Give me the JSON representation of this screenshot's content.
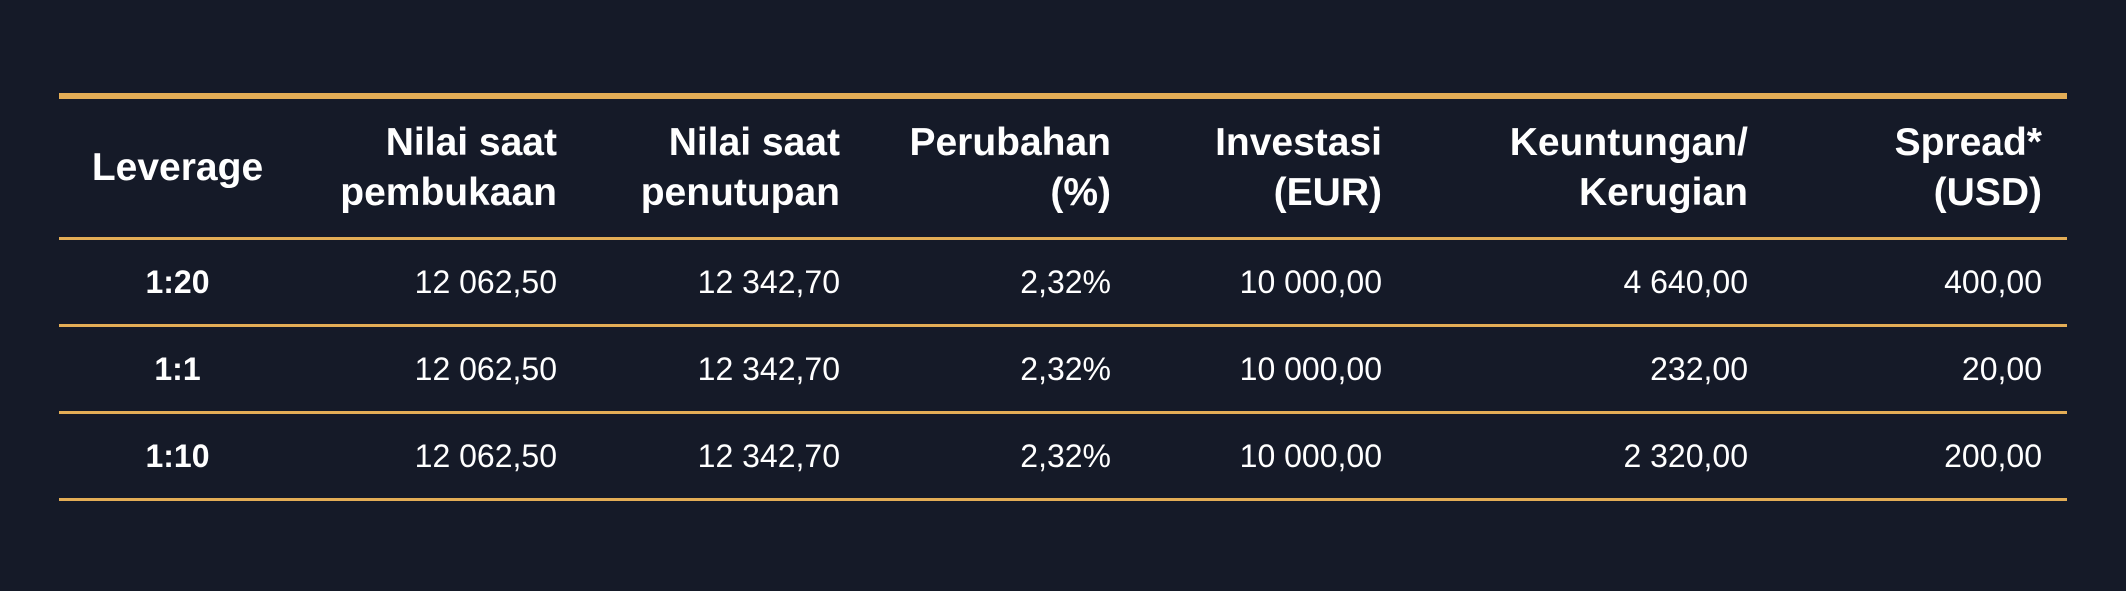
{
  "table": {
    "headers": [
      [
        "Leverage"
      ],
      [
        "Nilai saat",
        "pembukaan"
      ],
      [
        "Nilai saat",
        "penutupan"
      ],
      [
        "Perubahan",
        "(%)"
      ],
      [
        "Investasi",
        "(EUR)"
      ],
      [
        "Keuntungan/",
        "Kerugian"
      ],
      [
        "Spread*",
        "(USD)"
      ]
    ],
    "rows": [
      [
        "1:20",
        "12 062,50",
        "12 342,70",
        "2,32%",
        "10 000,00",
        "4 640,00",
        "400,00"
      ],
      [
        "1:1",
        "12 062,50",
        "12 342,70",
        "2,32%",
        "10 000,00",
        "232,00",
        "20,00"
      ],
      [
        "1:10",
        "12 062,50",
        "12 342,70",
        "2,32%",
        "10 000,00",
        "2 320,00",
        "200,00"
      ]
    ]
  },
  "colors": {
    "background": "#151a28",
    "rule": "#e3ad56",
    "text": "#ffffff"
  }
}
